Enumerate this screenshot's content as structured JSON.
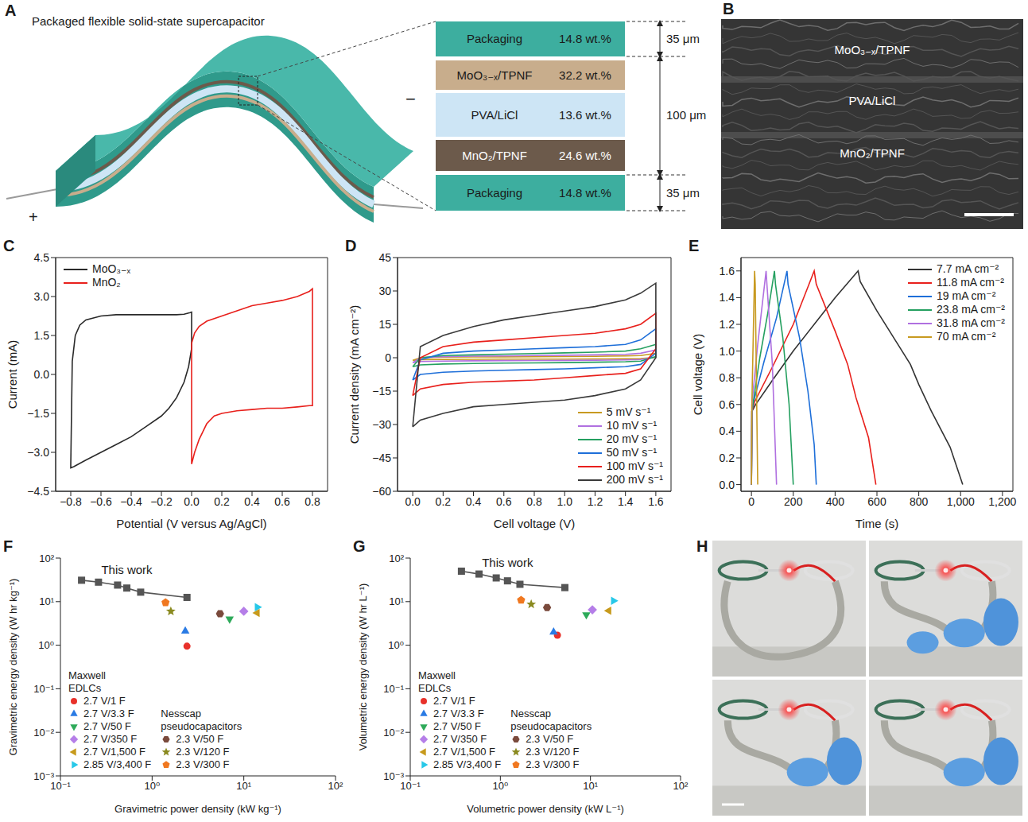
{
  "chart_data": [
    {
      "panel": "C",
      "type": "line",
      "x_label": "Potential (V versus Ag/AgCl)",
      "y_label": "Current (mA)",
      "xlim": [
        -0.9,
        0.9
      ],
      "xticks": [
        {
          "value": -0.8,
          "label": "−0.8"
        },
        {
          "value": -0.6,
          "label": "−0.6"
        },
        {
          "value": -0.4,
          "label": "−0.4"
        },
        {
          "value": -0.2,
          "label": "−0.2"
        },
        {
          "value": 0,
          "label": "0.0"
        },
        0.2,
        0.4,
        0.6,
        0.8
      ],
      "ylim": [
        -4.5,
        4.5
      ],
      "yticks": [
        {
          "value": -4.5,
          "label": "−4.5"
        },
        {
          "value": -3,
          "label": "−3.0"
        },
        {
          "value": -1.5,
          "label": "−1.5"
        },
        {
          "value": 0,
          "label": "0.0"
        },
        1.5,
        {
          "value": 3,
          "label": "3.0"
        },
        4.5
      ],
      "legend": "upper left",
      "series": [
        {
          "name": "MoO₃₋ₓ",
          "color": "#2a2a2a",
          "x": [
            -0.8,
            -0.79,
            -0.77,
            -0.74,
            -0.7,
            -0.6,
            -0.5,
            -0.4,
            -0.3,
            -0.2,
            -0.1,
            -0.05,
            -0.01,
            0,
            0,
            -0.02,
            -0.05,
            -0.1,
            -0.15,
            -0.2,
            -0.3,
            -0.4,
            -0.5,
            -0.6,
            -0.7,
            -0.78,
            -0.8,
            -0.8
          ],
          "values": [
            -3.5,
            0.5,
            1.5,
            1.9,
            2.1,
            2.25,
            2.3,
            2.3,
            2.3,
            2.3,
            2.3,
            2.32,
            2.38,
            2.4,
            1.0,
            0.3,
            -0.3,
            -0.9,
            -1.3,
            -1.6,
            -2.0,
            -2.4,
            -2.7,
            -3.0,
            -3.3,
            -3.55,
            -3.6,
            -3.5
          ]
        },
        {
          "name": "MnO₂",
          "color": "#e8201c",
          "x": [
            0,
            0,
            0.02,
            0.05,
            0.1,
            0.2,
            0.3,
            0.4,
            0.5,
            0.6,
            0.7,
            0.78,
            0.8,
            0.8,
            0.78,
            0.7,
            0.6,
            0.5,
            0.4,
            0.3,
            0.2,
            0.15,
            0.1,
            0.05,
            0.02,
            0
          ],
          "values": [
            -3.45,
            1.2,
            1.6,
            1.85,
            2.05,
            2.25,
            2.45,
            2.65,
            2.75,
            2.85,
            3.0,
            3.2,
            3.3,
            -1.2,
            -1.2,
            -1.25,
            -1.3,
            -1.3,
            -1.35,
            -1.4,
            -1.5,
            -1.6,
            -1.9,
            -2.5,
            -3.0,
            -3.45
          ]
        }
      ]
    },
    {
      "panel": "D",
      "type": "line",
      "x_label": "Cell voltage (V)",
      "y_label": "Current density (mA cm⁻²)",
      "xlim": [
        -0.1,
        1.7
      ],
      "xticks": [
        {
          "value": 0,
          "label": "0.0"
        },
        0.2,
        0.4,
        0.6,
        0.8,
        {
          "value": 1,
          "label": "1.0"
        },
        1.2,
        1.4,
        1.6
      ],
      "ylim": [
        -60,
        45
      ],
      "yticks": [
        {
          "value": -60,
          "label": "−60"
        },
        {
          "value": -45,
          "label": "−45"
        },
        {
          "value": -30,
          "label": "−30"
        },
        {
          "value": -15,
          "label": "−15"
        },
        0,
        15,
        30,
        45
      ],
      "legend": "lower right",
      "x": [
        0,
        0.05,
        0.2,
        0.4,
        0.6,
        0.8,
        1.0,
        1.2,
        1.4,
        1.5,
        1.6,
        1.6,
        1.5,
        1.4,
        1.2,
        1.0,
        0.8,
        0.6,
        0.4,
        0.2,
        0.05,
        0
      ],
      "series": [
        {
          "name": "5 mV s⁻¹",
          "color": "#c89a20",
          "values": [
            -1.2,
            0,
            0.3,
            0.35,
            0.4,
            0.5,
            0.55,
            0.65,
            0.8,
            1,
            2,
            0.2,
            -0.4,
            -0.5,
            -0.55,
            -0.6,
            -0.62,
            -0.65,
            -0.7,
            -0.75,
            -0.85,
            -1.2
          ]
        },
        {
          "name": "10 mV s⁻¹",
          "color": "#b070e0",
          "values": [
            -2.2,
            0,
            0.5,
            0.7,
            0.8,
            1,
            1.1,
            1.3,
            1.5,
            2,
            3.5,
            0.3,
            -0.8,
            -1,
            -1.1,
            -1.2,
            -1.25,
            -1.3,
            -1.4,
            -1.5,
            -1.7,
            -2.2
          ]
        },
        {
          "name": "20 mV s⁻¹",
          "color": "#25a060",
          "values": [
            -4,
            0,
            1,
            1.3,
            1.6,
            1.9,
            2.2,
            2.5,
            3,
            4,
            6,
            0.5,
            -1.5,
            -1.8,
            -2,
            -2.2,
            -2.3,
            -2.4,
            -2.6,
            -2.8,
            -3.2,
            -4
          ]
        },
        {
          "name": "50 mV s⁻¹",
          "color": "#1e6fd9",
          "values": [
            -10,
            -1,
            2,
            3,
            3.5,
            4,
            4.5,
            5,
            6,
            8,
            13,
            2,
            -3,
            -4,
            -4.5,
            -5,
            -5.3,
            -5.6,
            -6,
            -6.5,
            -7.5,
            -10
          ]
        },
        {
          "name": "100 mV s⁻¹",
          "color": "#e8201c",
          "values": [
            -17,
            0,
            5,
            7,
            8,
            9,
            10,
            11,
            13,
            15,
            20,
            4,
            -5,
            -7,
            -8,
            -9,
            -10,
            -10.5,
            -11,
            -12,
            -14,
            -17
          ]
        },
        {
          "name": "200 mV s⁻¹",
          "color": "#3a3a3a",
          "values": [
            -31,
            5,
            10,
            14,
            17,
            19,
            21,
            23,
            26,
            29,
            33.5,
            0,
            -10,
            -14,
            -17,
            -19,
            -20,
            -21,
            -22,
            -25,
            -28,
            -31
          ]
        }
      ]
    },
    {
      "panel": "E",
      "type": "line",
      "x_label": "Time (s)",
      "y_label": "Cell voltage (V)",
      "xlim": [
        -50,
        1250
      ],
      "xticks": [
        0,
        200,
        400,
        600,
        800,
        {
          "value": 1000,
          "label": "1,000"
        },
        {
          "value": 1200,
          "label": "1,200"
        }
      ],
      "ylim": [
        -0.05,
        1.7
      ],
      "yticks": [
        {
          "value": 0,
          "label": "0.0"
        },
        0.2,
        0.4,
        0.6,
        0.8,
        {
          "value": 1,
          "label": "1.0"
        },
        1.2,
        1.4,
        1.6
      ],
      "legend": "upper right",
      "series": [
        {
          "name": "7.7 mA cm⁻²",
          "color": "#333333",
          "x": [
            0,
            3,
            20,
            100,
            200,
            300,
            400,
            510,
            520,
            600,
            700,
            760,
            800,
            860,
            950,
            1010
          ],
          "values": [
            0,
            0.55,
            0.6,
            0.78,
            1.0,
            1.2,
            1.4,
            1.6,
            1.52,
            1.3,
            1.05,
            0.9,
            0.75,
            0.55,
            0.28,
            0
          ]
        },
        {
          "name": "11.8 mA cm⁻²",
          "color": "#e8201c",
          "x": [
            0,
            2,
            15,
            100,
            200,
            300,
            310,
            400,
            460,
            500,
            560,
            595
          ],
          "values": [
            0,
            0.55,
            0.62,
            0.88,
            1.2,
            1.6,
            1.5,
            1.15,
            0.9,
            0.65,
            0.35,
            0
          ]
        },
        {
          "name": "19 mA cm⁻²",
          "color": "#1e6fd9",
          "x": [
            0,
            2,
            10,
            60,
            120,
            170,
            175,
            230,
            270,
            300,
            310
          ],
          "values": [
            0,
            0.55,
            0.62,
            0.92,
            1.25,
            1.6,
            1.5,
            1.1,
            0.7,
            0.3,
            0
          ]
        },
        {
          "name": "23.8 mA cm⁻²",
          "color": "#25a060",
          "x": [
            0,
            2,
            40,
            80,
            110,
            115,
            150,
            180,
            200
          ],
          "values": [
            0,
            0.55,
            0.95,
            1.3,
            1.6,
            1.5,
            1.1,
            0.6,
            0
          ]
        },
        {
          "name": "31.8 mA cm⁻²",
          "color": "#b070e0",
          "x": [
            0,
            2,
            30,
            70,
            74,
            100,
            120
          ],
          "values": [
            0,
            0.6,
            1.05,
            1.6,
            1.5,
            0.9,
            0
          ]
        },
        {
          "name": "70 mA cm⁻²",
          "color": "#c89a20",
          "x": [
            0,
            2,
            15,
            18,
            30
          ],
          "values": [
            0,
            0.6,
            1.6,
            1.5,
            0
          ]
        }
      ]
    },
    {
      "panel": "F",
      "type": "scatter",
      "log": true,
      "x_label": "Gravimetric power density (kW kg⁻¹)",
      "y_label": "Gravimetric energy density (W hr kg⁻¹)",
      "xlim": [
        0.1,
        100
      ],
      "xticks": [
        {
          "value": 0.1,
          "label": "10⁻¹"
        },
        {
          "value": 1,
          "label": "10⁰"
        },
        {
          "value": 10,
          "label": "10¹"
        },
        {
          "value": 100,
          "label": "10²"
        }
      ],
      "ylim": [
        0.001,
        100
      ],
      "yticks": [
        {
          "value": 0.001,
          "label": "10⁻³"
        },
        {
          "value": 0.01,
          "label": "10⁻²"
        },
        {
          "value": 0.1,
          "label": "10⁻¹"
        },
        {
          "value": 1,
          "label": "10⁰"
        },
        {
          "value": 10,
          "label": "10¹"
        },
        {
          "value": 100,
          "label": "10²"
        }
      ],
      "legend": "lower left",
      "series": [
        {
          "name": "This work",
          "color": "#555555",
          "marker": "square",
          "line_style": "solid",
          "x": [
            0.17,
            0.26,
            0.42,
            0.53,
            0.75,
            2.4
          ],
          "values": [
            31,
            28,
            24,
            20.5,
            16.5,
            12.5
          ]
        },
        {
          "name": "2.7 V/1 F",
          "group": "Maxwell EDLCs",
          "color": "#e8312a",
          "marker": "circle",
          "x": [
            2.4
          ],
          "values": [
            0.95
          ]
        },
        {
          "name": "2.7 V/3.3 F",
          "group": "Maxwell EDLCs",
          "color": "#2a7be4",
          "marker": "triangle-up",
          "x": [
            2.3
          ],
          "values": [
            2.1
          ]
        },
        {
          "name": "2.7 V/50 F",
          "group": "Maxwell EDLCs",
          "color": "#2eaa5a",
          "marker": "triangle-down",
          "x": [
            7
          ],
          "values": [
            4
          ]
        },
        {
          "name": "2.7 V/350 F",
          "group": "Maxwell EDLCs",
          "color": "#b57ee8",
          "marker": "diamond",
          "x": [
            10
          ],
          "values": [
            6
          ]
        },
        {
          "name": "2.7 V/1,500 F",
          "group": "Maxwell EDLCs",
          "color": "#c79a1c",
          "marker": "triangle-left",
          "x": [
            14
          ],
          "values": [
            5.5
          ]
        },
        {
          "name": "2.85 V/3,400 F",
          "group": "Maxwell EDLCs",
          "color": "#27c8e8",
          "marker": "triangle-right",
          "x": [
            14
          ],
          "values": [
            7.5
          ]
        },
        {
          "name": "2.3 V/50 F",
          "group": "Nesscap pseudocapacitors",
          "color": "#7a4a3c",
          "marker": "hexagon",
          "x": [
            5.5
          ],
          "values": [
            5.3
          ]
        },
        {
          "name": "2.3 V/120 F",
          "group": "Nesscap pseudocapacitors",
          "color": "#8a8a20",
          "marker": "star",
          "x": [
            1.6
          ],
          "values": [
            6
          ]
        },
        {
          "name": "2.3 V/300 F",
          "group": "Nesscap pseudocapacitors",
          "color": "#f07820",
          "marker": "pentagon",
          "x": [
            1.4
          ],
          "values": [
            9.5
          ]
        }
      ]
    },
    {
      "panel": "G",
      "type": "scatter",
      "log": true,
      "x_label": "Volumetric power density (kW L⁻¹)",
      "y_label": "Volumetric energy density (W hr L⁻¹)",
      "xlim": [
        0.1,
        100
      ],
      "xticks": [
        {
          "value": 0.1,
          "label": "10⁻¹"
        },
        {
          "value": 1,
          "label": "10⁰"
        },
        {
          "value": 10,
          "label": "10¹"
        },
        {
          "value": 100,
          "label": "10²"
        }
      ],
      "ylim": [
        0.001,
        100
      ],
      "yticks": [
        {
          "value": 0.001,
          "label": "10⁻³"
        },
        {
          "value": 0.01,
          "label": "10⁻²"
        },
        {
          "value": 0.1,
          "label": "10⁻¹"
        },
        {
          "value": 1,
          "label": "10⁰"
        },
        {
          "value": 10,
          "label": "10¹"
        },
        {
          "value": 100,
          "label": "10²"
        }
      ],
      "legend": "lower left",
      "series": [
        {
          "name": "This work",
          "color": "#555555",
          "marker": "square",
          "line_style": "solid",
          "x": [
            0.37,
            0.58,
            0.9,
            1.2,
            1.65,
            5.2
          ],
          "values": [
            50,
            43,
            35,
            30,
            25,
            21
          ]
        },
        {
          "name": "2.7 V/1 F",
          "group": "Maxwell EDLCs",
          "color": "#e8312a",
          "marker": "circle",
          "x": [
            4.3
          ],
          "values": [
            1.7
          ]
        },
        {
          "name": "2.7 V/3.3 F",
          "group": "Maxwell EDLCs",
          "color": "#2a7be4",
          "marker": "triangle-up",
          "x": [
            3.9
          ],
          "values": [
            2
          ]
        },
        {
          "name": "2.7 V/50 F",
          "group": "Maxwell EDLCs",
          "color": "#2eaa5a",
          "marker": "triangle-down",
          "x": [
            9
          ],
          "values": [
            5
          ]
        },
        {
          "name": "2.7 V/350 F",
          "group": "Maxwell EDLCs",
          "color": "#b57ee8",
          "marker": "diamond",
          "x": [
            10.5
          ],
          "values": [
            6.5
          ]
        },
        {
          "name": "2.7 V/1,500 F",
          "group": "Maxwell EDLCs",
          "color": "#c79a1c",
          "marker": "triangle-left",
          "x": [
            16
          ],
          "values": [
            6.2
          ]
        },
        {
          "name": "2.85 V/3,400 F",
          "group": "Maxwell EDLCs",
          "color": "#27c8e8",
          "marker": "triangle-right",
          "x": [
            18
          ],
          "values": [
            10.5
          ]
        },
        {
          "name": "2.3 V/50 F",
          "group": "Nesscap pseudocapacitors",
          "color": "#7a4a3c",
          "marker": "hexagon",
          "x": [
            3.3
          ],
          "values": [
            7.3
          ]
        },
        {
          "name": "2.3 V/120 F",
          "group": "Nesscap pseudocapacitors",
          "color": "#8a8a20",
          "marker": "star",
          "x": [
            2.2
          ],
          "values": [
            8.7
          ]
        },
        {
          "name": "2.3 V/300 F",
          "group": "Nesscap pseudocapacitors",
          "color": "#f07820",
          "marker": "pentagon",
          "x": [
            1.7
          ],
          "values": [
            10.8
          ]
        }
      ]
    }
  ],
  "panels": {
    "A": {
      "panel": "A",
      "title": "Packaged flexible solid-state supercapacitor",
      "terminals": {
        "positive": "+",
        "negative": "−"
      },
      "layers": [
        {
          "name": "Packaging",
          "wt": "14.8 wt.%"
        },
        {
          "name": "MoO₃₋ₓ/TPNF",
          "wt": "32.2 wt.%"
        },
        {
          "name": "PVA/LiCl",
          "wt": "13.6 wt.%"
        },
        {
          "name": "MnO₂/TPNF",
          "wt": "24.6 wt.%"
        },
        {
          "name": "Packaging",
          "wt": "14.8 wt.%"
        }
      ],
      "thicknesses": {
        "packaging": "35 μm",
        "device": "100 μm"
      }
    },
    "B": {
      "panel": "B",
      "labels": [
        "MoO₃₋ₓ/TPNF",
        "PVA/LiCl",
        "MnO₂/TPNF"
      ]
    },
    "H": {
      "panel": "H"
    }
  }
}
